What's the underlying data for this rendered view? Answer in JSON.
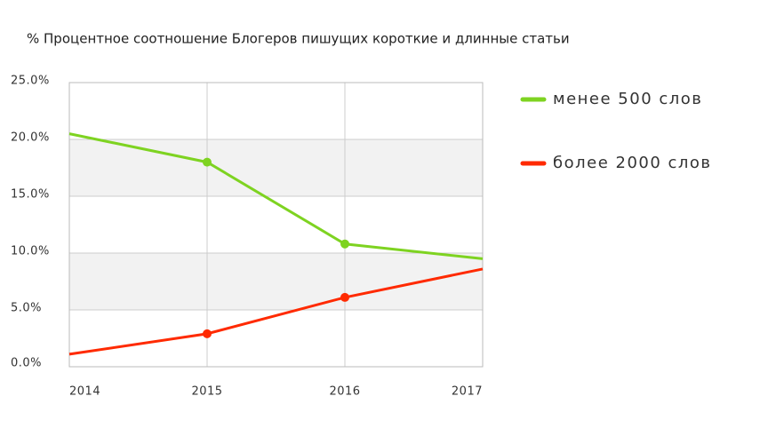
{
  "chart_data": {
    "type": "line",
    "title": "% Процентное соотношение Блогеров пишущих короткие и длинные статьи",
    "categories": [
      "2014",
      "2015",
      "2016",
      "2017"
    ],
    "series": [
      {
        "name": "менее 500 слов",
        "color": "#7ed321",
        "values": [
          20.5,
          18.0,
          10.8,
          9.5
        ]
      },
      {
        "name": "более 2000 слов",
        "color": "#ff2a00",
        "values": [
          1.1,
          2.9,
          6.1,
          8.6
        ]
      }
    ],
    "ylim": [
      0,
      25
    ],
    "yticks": [
      {
        "value": 0,
        "label": "0.0%"
      },
      {
        "value": 5,
        "label": "5.0%"
      },
      {
        "value": 10,
        "label": "10.0%"
      },
      {
        "value": 15,
        "label": "15.0%"
      },
      {
        "value": 20,
        "label": "20.0%"
      },
      {
        "value": 25,
        "label": "25.0%"
      }
    ],
    "grid": true,
    "legend": "right"
  }
}
